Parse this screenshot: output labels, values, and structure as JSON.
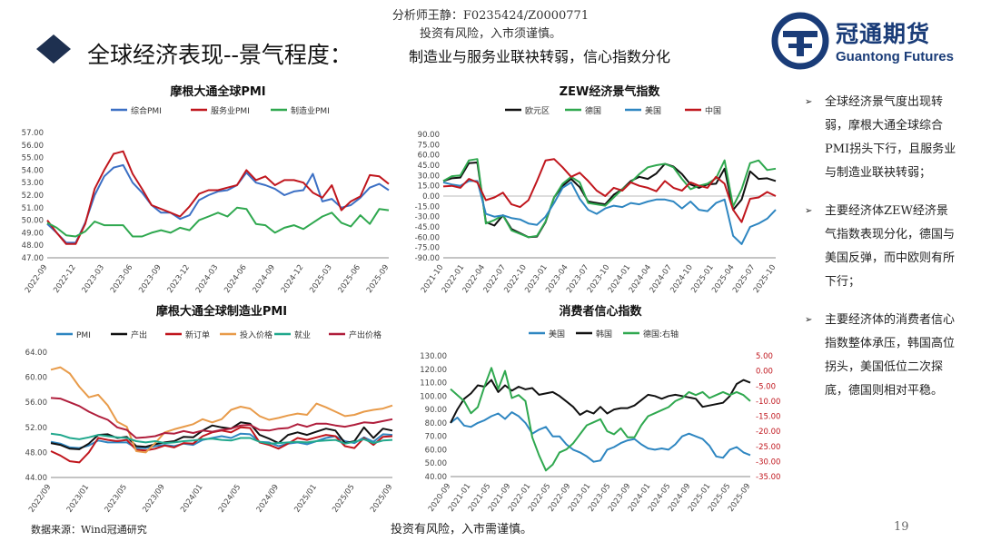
{
  "header": {
    "analyst": "分析师王静：F0235424/Z0000771",
    "risk_top": "投资有风险，入市须谨慎。",
    "title": "全球经济表现--景气程度：",
    "subtitle": "制造业与服务业联袂转弱，信心指数分化",
    "logo_cn": "冠通期货",
    "logo_en": "Guantong Futures"
  },
  "bullets": [
    "全球经济景气度出现转弱，摩根大通全球综合PMI拐头下行，且服务业与制造业联袂转弱；",
    "主要经济体ZEW经济景气指数表现分化，德国与美国反弹，而中欧则有所下行；",
    "主要经济体的消费者信心指数整体承压，韩国高位拐头，美国低位二次探底，德国则相对平稳。"
  ],
  "footer": {
    "source": "数据来源：Wind冠通研究",
    "risk": "投资有风险，入市需谨慎。",
    "page": "19"
  },
  "colors": {
    "blue": "#3b6fc4",
    "red": "#c0161d",
    "green": "#2fa84f",
    "black": "#111111",
    "lightblue": "#2e86c1",
    "orange": "#e89b4a",
    "teal": "#21a88d",
    "darkred": "#b01e3c",
    "navy": "#1a3c78"
  },
  "chart_data": [
    {
      "id": "pmi",
      "type": "line",
      "title": "摩根大通全球PMI",
      "ylim": [
        47,
        57
      ],
      "yticks": [
        "47.00",
        "48.00",
        "49.00",
        "50.00",
        "51.00",
        "52.00",
        "53.00",
        "54.00",
        "55.00",
        "56.00",
        "57.00"
      ],
      "xticks": [
        "2022-09",
        "2022-12",
        "2023-03",
        "2023-06",
        "2023-09",
        "2023-12",
        "2024-03",
        "2024-06",
        "2024-09",
        "2024-12",
        "2025-03",
        "2025-06",
        "2025-09"
      ],
      "series": [
        {
          "name": "综合PMI",
          "color": "#3b6fc4",
          "values": [
            49.7,
            49.0,
            48.2,
            48.2,
            49.8,
            52.0,
            53.5,
            54.2,
            54.4,
            53.0,
            52.2,
            51.2,
            50.6,
            50.6,
            50.1,
            50.4,
            51.6,
            52.0,
            52.3,
            52.4,
            52.8,
            53.8,
            53.0,
            52.8,
            52.5,
            52.0,
            52.3,
            52.4,
            53.7,
            51.5,
            51.7,
            51.0,
            51.2,
            51.8,
            52.6,
            52.9,
            52.4
          ]
        },
        {
          "name": "服务业PMI",
          "color": "#c0161d",
          "values": [
            50.0,
            49.0,
            48.1,
            48.1,
            49.7,
            52.5,
            54.0,
            55.3,
            55.5,
            53.7,
            52.5,
            51.2,
            50.9,
            50.6,
            50.3,
            51.1,
            52.1,
            52.4,
            52.4,
            52.6,
            52.8,
            54.0,
            53.2,
            53.5,
            52.8,
            53.2,
            53.2,
            53.0,
            52.2,
            51.8,
            52.8,
            50.8,
            51.5,
            51.9,
            53.6,
            53.5,
            52.9
          ]
        },
        {
          "name": "制造业PMI",
          "color": "#2fa84f",
          "values": [
            49.8,
            49.4,
            48.8,
            48.7,
            49.1,
            49.9,
            49.6,
            49.6,
            49.6,
            48.7,
            48.7,
            49.0,
            49.2,
            49.0,
            49.4,
            49.2,
            50.0,
            50.3,
            50.6,
            50.3,
            51.0,
            50.9,
            49.7,
            49.6,
            49.0,
            49.4,
            49.6,
            49.3,
            49.8,
            50.3,
            50.6,
            49.8,
            49.5,
            50.4,
            49.7,
            50.9,
            50.8
          ]
        }
      ]
    },
    {
      "id": "zew",
      "type": "line",
      "title": "ZEW经济景气指数",
      "ylim": [
        -90,
        90
      ],
      "yticks": [
        "-90.00",
        "-75.00",
        "-60.00",
        "-45.00",
        "-30.00",
        "-15.00",
        "0.00",
        "15.00",
        "30.00",
        "45.00",
        "60.00",
        "75.00",
        "90.00"
      ],
      "xticks": [
        "2021-10",
        "2022-01",
        "2022-04",
        "2022-07",
        "2022-10",
        "2023-01",
        "2023-04",
        "2023-07",
        "2023-10",
        "2024-01",
        "2024-04",
        "2024-07",
        "2024-10",
        "2025-01",
        "2025-04",
        "2025-07",
        "2025-10"
      ],
      "series": [
        {
          "name": "欧元区",
          "color": "#111111",
          "values": [
            22,
            26,
            27,
            48,
            49,
            -38,
            -43,
            -28,
            -48,
            -54,
            -60,
            -59,
            -38,
            -2,
            15,
            25,
            13,
            -8,
            -10,
            -12,
            2,
            10,
            22,
            28,
            25,
            33,
            47,
            43,
            32,
            17,
            12,
            17,
            18,
            40,
            -20,
            -5,
            36,
            25,
            26,
            22
          ]
        },
        {
          "name": "德国",
          "color": "#2fa84f",
          "values": [
            22,
            29,
            30,
            52,
            54,
            -40,
            -35,
            -28,
            -50,
            -55,
            -60,
            -58,
            -37,
            -2,
            18,
            28,
            20,
            -10,
            -12,
            -14,
            -2,
            10,
            20,
            32,
            42,
            45,
            47,
            42,
            25,
            10,
            15,
            18,
            26,
            52,
            -15,
            10,
            48,
            52,
            38,
            40
          ]
        },
        {
          "name": "美国",
          "color": "#2e86c1",
          "values": [
            20,
            17,
            15,
            22,
            22,
            -26,
            -30,
            -28,
            -32,
            -34,
            -40,
            -42,
            -30,
            -10,
            12,
            20,
            -4,
            -20,
            -26,
            -18,
            -14,
            -16,
            -10,
            -12,
            -8,
            -5,
            -5,
            -8,
            -18,
            -8,
            -20,
            -22,
            -10,
            -5,
            -58,
            -70,
            -45,
            -40,
            -33,
            -20
          ]
        },
        {
          "name": "中国",
          "color": "#c0161d",
          "values": [
            14,
            15,
            12,
            25,
            20,
            -6,
            -2,
            5,
            -12,
            -16,
            -6,
            22,
            52,
            54,
            42,
            28,
            34,
            22,
            8,
            0,
            12,
            8,
            20,
            15,
            12,
            7,
            22,
            12,
            8,
            20,
            15,
            12,
            28,
            18,
            -20,
            -38,
            -4,
            -2,
            6,
            0
          ]
        }
      ]
    },
    {
      "id": "mfg",
      "type": "line",
      "title": "摩根大通全球制造业PMI",
      "ylim": [
        44,
        64
      ],
      "yticks": [
        "44.00",
        "48.00",
        "52.00",
        "56.00",
        "60.00",
        "64.00"
      ],
      "xticks": [
        "2022/09",
        "2023/01",
        "2023/05",
        "2023/09",
        "2024/01",
        "2024/05",
        "2024/09",
        "2025/01",
        "2025/05",
        "2025/09"
      ],
      "series": [
        {
          "name": "PMI",
          "color": "#2e86c1",
          "values": [
            49.7,
            49.4,
            48.8,
            48.7,
            49.1,
            49.9,
            49.6,
            49.6,
            49.6,
            48.7,
            48.7,
            49.0,
            49.2,
            49.0,
            49.4,
            49.2,
            50.0,
            50.3,
            50.6,
            50.3,
            51.0,
            50.9,
            49.7,
            49.6,
            49.0,
            49.4,
            49.6,
            49.3,
            49.8,
            50.3,
            50.6,
            49.8,
            49.5,
            50.4,
            49.7,
            50.9,
            50.8
          ]
        },
        {
          "name": "产出",
          "color": "#111111",
          "values": [
            49.5,
            49.2,
            48.6,
            48.5,
            49.4,
            50.8,
            50.9,
            50.3,
            50.5,
            49.0,
            48.9,
            49.3,
            49.6,
            49.8,
            50.5,
            50.4,
            51.5,
            52.3,
            52.0,
            51.8,
            52.8,
            52.6,
            50.8,
            50.2,
            49.5,
            50.8,
            51.2,
            50.8,
            51.3,
            51.8,
            51.5,
            49.5,
            49.8,
            52.0,
            50.3,
            51.8,
            51.5
          ]
        },
        {
          "name": "新订单",
          "color": "#c0161d",
          "values": [
            48.2,
            47.5,
            46.6,
            46.4,
            48.0,
            50.3,
            50.0,
            49.8,
            50.0,
            48.4,
            48.3,
            48.6,
            49.1,
            48.8,
            49.5,
            49.4,
            50.6,
            51.2,
            51.5,
            51.2,
            52.0,
            51.9,
            49.6,
            49.2,
            48.6,
            49.4,
            50.3,
            50.0,
            50.4,
            50.8,
            50.6,
            49.0,
            48.7,
            50.3,
            49.2,
            50.5,
            50.6
          ]
        },
        {
          "name": "投入价格",
          "color": "#e89b4a",
          "values": [
            61.2,
            61.6,
            60.6,
            58.5,
            56.8,
            57.2,
            55.5,
            52.9,
            52.1,
            48.2,
            48.0,
            49.5,
            51.2,
            51.7,
            52.1,
            52.5,
            53.3,
            52.8,
            53.3,
            54.8,
            55.3,
            55.0,
            53.8,
            53.2,
            53.5,
            53.9,
            54.2,
            54.0,
            55.8,
            55.2,
            54.5,
            53.8,
            54.0,
            54.5,
            54.8,
            55.0,
            55.5
          ]
        },
        {
          "name": "就业",
          "color": "#21a88d",
          "values": [
            51.0,
            50.8,
            50.3,
            50.1,
            50.4,
            50.8,
            50.6,
            50.4,
            50.3,
            49.8,
            49.6,
            49.8,
            49.5,
            49.6,
            49.8,
            49.9,
            50.1,
            50.2,
            50.0,
            49.9,
            50.3,
            50.3,
            49.7,
            49.4,
            49.5,
            49.6,
            49.7,
            49.6,
            49.8,
            49.9,
            50.0,
            49.4,
            49.7,
            50.1,
            49.5,
            49.9,
            50.0
          ]
        },
        {
          "name": "产出价格",
          "color": "#b01e3c",
          "values": [
            56.7,
            56.6,
            56.0,
            55.4,
            54.5,
            53.8,
            53.2,
            52.0,
            51.6,
            50.3,
            50.4,
            50.6,
            51.1,
            51.0,
            51.4,
            51.1,
            51.5,
            51.3,
            51.6,
            51.8,
            52.3,
            52.4,
            51.6,
            51.5,
            51.8,
            51.9,
            52.5,
            52.1,
            52.6,
            52.6,
            52.3,
            52.1,
            52.4,
            52.8,
            52.7,
            53.0,
            53.3
          ]
        }
      ]
    },
    {
      "id": "conf",
      "type": "line",
      "title": "消费者信心指数",
      "ylim": [
        40,
        130
      ],
      "ylim_right": [
        -35,
        5
      ],
      "yticks": [
        "40.00",
        "50.00",
        "60.00",
        "70.00",
        "80.00",
        "90.00",
        "100.00",
        "110.00",
        "120.00",
        "130.00"
      ],
      "yticks_right": [
        "-35.00",
        "-30.00",
        "-25.00",
        "-20.00",
        "-15.00",
        "-10.00",
        "-5.00",
        "0.00",
        "5.00"
      ],
      "xticks": [
        "2020-09",
        "2021-01",
        "2021-05",
        "2021-09",
        "2022-01",
        "2022-05",
        "2022-09",
        "2023-01",
        "2023-05",
        "2023-09",
        "2024-01",
        "2024-05",
        "2024-09",
        "2025-01",
        "2025-05",
        "2025-09"
      ],
      "series": [
        {
          "name": "美国",
          "color": "#2e86c1",
          "axis": "left",
          "values": [
            80,
            84,
            78,
            77,
            80,
            82,
            85,
            87,
            83,
            88,
            85,
            80,
            72,
            75,
            77,
            70,
            70,
            64,
            60,
            58,
            55,
            51,
            52,
            60,
            62,
            65,
            67,
            68,
            64,
            61,
            60,
            61,
            60,
            64,
            70,
            72,
            70,
            68,
            63,
            55,
            54,
            60,
            62,
            58,
            56
          ]
        },
        {
          "name": "韩国",
          "color": "#111111",
          "axis": "left",
          "values": [
            80,
            90,
            98,
            102,
            108,
            107,
            112,
            103,
            108,
            104,
            107,
            105,
            106,
            101,
            102,
            103,
            100,
            96,
            92,
            86,
            89,
            87,
            92,
            87,
            90,
            91,
            91,
            93,
            97,
            101,
            100,
            98,
            100,
            101,
            100,
            99,
            98,
            92,
            93,
            94,
            95,
            100,
            109,
            112,
            110
          ]
        },
        {
          "name": "德国:右轴",
          "color": "#2fa84f",
          "axis": "right",
          "values": [
            -6,
            -8,
            -10,
            -14,
            -12,
            -5,
            1,
            -6,
            0,
            -9,
            -8,
            -10,
            -22,
            -28,
            -33,
            -31,
            -27,
            -26,
            -24,
            -21,
            -18,
            -17,
            -16,
            -20,
            -21,
            -19,
            -22,
            -22,
            -18,
            -15,
            -14,
            -13,
            -12,
            -10,
            -9,
            -7,
            -8,
            -7,
            -9,
            -8,
            -7,
            -8,
            -7,
            -8,
            -10
          ]
        }
      ]
    }
  ]
}
